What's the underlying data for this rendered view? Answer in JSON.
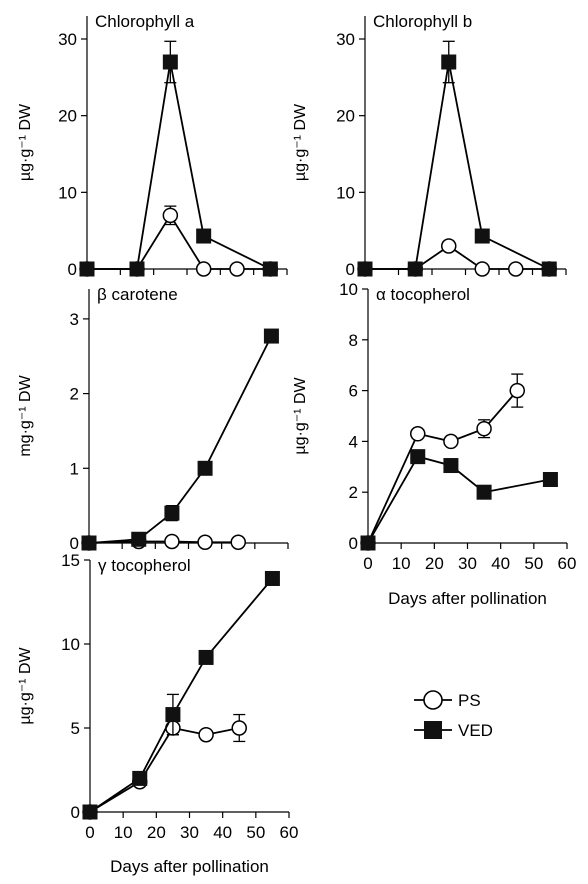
{
  "legend": {
    "entries": [
      {
        "label": "PS",
        "marker": "open-circle"
      },
      {
        "label": "VED",
        "marker": "filled-square"
      }
    ],
    "placement": "bottom-right"
  },
  "chart_data": [
    {
      "type": "line",
      "id": "chl-a",
      "title": "Chlorophyll a",
      "xlabel": "",
      "ylabel": "µg·g⁻¹ DW",
      "xlim": [
        0,
        60
      ],
      "ylim": [
        0,
        33
      ],
      "xticks": [
        0,
        10,
        20,
        30,
        40,
        50,
        60
      ],
      "yticks": [
        0,
        10,
        20,
        30
      ],
      "show_x_tick_labels": false,
      "series": [
        {
          "name": "PS",
          "marker": "open-circle",
          "x": [
            0,
            15,
            25,
            35,
            45,
            55
          ],
          "y": [
            0,
            0,
            7,
            0,
            0,
            0
          ],
          "err": [
            0,
            0,
            1.2,
            0,
            0,
            0
          ]
        },
        {
          "name": "VED",
          "marker": "filled-square",
          "x": [
            0,
            15,
            25,
            35,
            55
          ],
          "y": [
            0,
            0,
            27,
            4.3,
            0
          ],
          "err": [
            0,
            0,
            2.7,
            0.8,
            0
          ]
        }
      ]
    },
    {
      "type": "line",
      "id": "chl-b",
      "title": "Chlorophyll b",
      "xlabel": "",
      "ylabel": "µg·g⁻¹ DW",
      "xlim": [
        0,
        60
      ],
      "ylim": [
        0,
        33
      ],
      "xticks": [
        0,
        10,
        20,
        30,
        40,
        50,
        60
      ],
      "yticks": [
        0,
        10,
        20,
        30
      ],
      "show_x_tick_labels": false,
      "series": [
        {
          "name": "PS",
          "marker": "open-circle",
          "x": [
            0,
            15,
            25,
            35,
            45,
            55
          ],
          "y": [
            0,
            0,
            3,
            0,
            0,
            0
          ],
          "err": [
            0,
            0,
            0.6,
            0,
            0,
            0
          ]
        },
        {
          "name": "VED",
          "marker": "filled-square",
          "x": [
            0,
            15,
            25,
            35,
            55
          ],
          "y": [
            0,
            0,
            27,
            4.3,
            0
          ],
          "err": [
            0,
            0,
            2.7,
            0.8,
            0
          ]
        }
      ]
    },
    {
      "type": "line",
      "id": "b-carotene",
      "title": "β carotene",
      "xlabel": "",
      "ylabel": "mg·g⁻¹ DW",
      "xlim": [
        0,
        60
      ],
      "ylim": [
        0,
        3.4
      ],
      "xticks": [
        0,
        10,
        20,
        30,
        40,
        50,
        60
      ],
      "yticks": [
        0,
        1,
        2,
        3
      ],
      "show_x_tick_labels": false,
      "series": [
        {
          "name": "PS",
          "marker": "open-circle",
          "x": [
            0,
            15,
            25,
            35,
            45
          ],
          "y": [
            0,
            0.02,
            0.02,
            0.01,
            0.01
          ],
          "err": [
            0,
            0,
            0,
            0,
            0
          ]
        },
        {
          "name": "VED",
          "marker": "filled-square",
          "x": [
            0,
            15,
            25,
            35,
            55
          ],
          "y": [
            0,
            0.05,
            0.4,
            1.0,
            2.77
          ],
          "err": [
            0,
            0.02,
            0.1,
            0.05,
            0.03
          ]
        }
      ]
    },
    {
      "type": "line",
      "id": "a-tocopherol",
      "title": "α tocopherol",
      "xlabel": "Days after pollination",
      "ylabel": "µg·g⁻¹ DW",
      "xlim": [
        0,
        60
      ],
      "ylim": [
        0,
        10
      ],
      "xticks": [
        0,
        10,
        20,
        30,
        40,
        50,
        60
      ],
      "yticks": [
        0,
        2,
        4,
        6,
        8,
        10
      ],
      "show_x_tick_labels": true,
      "series": [
        {
          "name": "PS",
          "marker": "open-circle",
          "x": [
            0,
            15,
            25,
            35,
            45
          ],
          "y": [
            0,
            4.3,
            4.0,
            4.5,
            6.0
          ],
          "err": [
            0,
            0.1,
            0.15,
            0.35,
            0.65
          ]
        },
        {
          "name": "VED",
          "marker": "filled-square",
          "x": [
            0,
            15,
            25,
            35,
            55
          ],
          "y": [
            0,
            3.4,
            3.05,
            2.0,
            2.5
          ],
          "err": [
            0,
            0.1,
            0.1,
            0.05,
            0.05
          ]
        }
      ]
    },
    {
      "type": "line",
      "id": "g-tocopherol",
      "title": "γ tocopherol",
      "xlabel": "Days after pollination",
      "ylabel": "µg·g⁻¹ DW",
      "xlim": [
        0,
        60
      ],
      "ylim": [
        0,
        15
      ],
      "xticks": [
        0,
        10,
        20,
        30,
        40,
        50,
        60
      ],
      "yticks": [
        0,
        5,
        10,
        15
      ],
      "show_x_tick_labels": true,
      "series": [
        {
          "name": "PS",
          "marker": "open-circle",
          "x": [
            0,
            15,
            25,
            35,
            45
          ],
          "y": [
            0,
            1.8,
            5.0,
            4.6,
            5.0
          ],
          "err": [
            0,
            0.2,
            0.4,
            0.2,
            0.8
          ]
        },
        {
          "name": "VED",
          "marker": "filled-square",
          "x": [
            0,
            15,
            25,
            35,
            55
          ],
          "y": [
            0,
            2.0,
            5.8,
            9.2,
            13.9
          ],
          "err": [
            0,
            0.2,
            1.2,
            0.2,
            0.2
          ]
        }
      ]
    }
  ]
}
